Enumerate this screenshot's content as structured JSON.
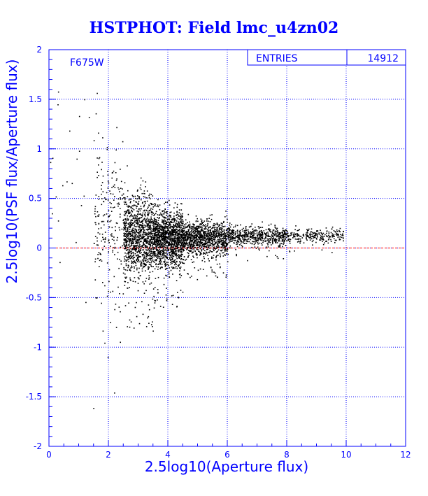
{
  "chart_data": {
    "type": "scatter",
    "title": "HSTPHOT: Field lmc_u4zn02",
    "xlabel": "2.5log10(Aperture flux)",
    "ylabel": "2.5log10(PSF flux/Aperture flux)",
    "xlim": [
      0,
      12
    ],
    "ylim": [
      -2,
      2
    ],
    "x_ticks": [
      "0",
      "2",
      "4",
      "6",
      "8",
      "10",
      "12"
    ],
    "y_ticks": [
      "-2",
      "-1.5",
      "-1",
      "-0.5",
      "0",
      "0.5",
      "1",
      "1.5",
      "2"
    ],
    "grid": true,
    "reference_line": {
      "y": 0,
      "color": "#ff0000"
    },
    "annotation": "F675W",
    "stats_box": {
      "label": "ENTRIES",
      "value": "14912"
    },
    "colors": {
      "axis": "#0000ff",
      "title": "#0000ff",
      "points": "#000000",
      "reference": "#ff0000"
    },
    "point_density_profile": {
      "note_values_are_data_units": true,
      "bins": [
        {
          "x_range": [
            0.0,
            1.5
          ],
          "y_center": 0.9,
          "y_spread": 0.8,
          "weight": 70
        },
        {
          "x_range": [
            1.5,
            2.5
          ],
          "y_center": 0.3,
          "y_spread": 0.55,
          "weight": 700
        },
        {
          "x_range": [
            2.5,
            3.5
          ],
          "y_center": 0.12,
          "y_spread": 0.28,
          "weight": 3500
        },
        {
          "x_range": [
            3.5,
            4.5
          ],
          "y_center": 0.1,
          "y_spread": 0.2,
          "weight": 4200
        },
        {
          "x_range": [
            4.5,
            6.0
          ],
          "y_center": 0.1,
          "y_spread": 0.12,
          "weight": 3300
        },
        {
          "x_range": [
            6.0,
            8.0
          ],
          "y_center": 0.12,
          "y_spread": 0.07,
          "weight": 1850
        },
        {
          "x_range": [
            8.0,
            9.9
          ],
          "y_center": 0.13,
          "y_spread": 0.05,
          "weight": 760
        }
      ]
    }
  }
}
